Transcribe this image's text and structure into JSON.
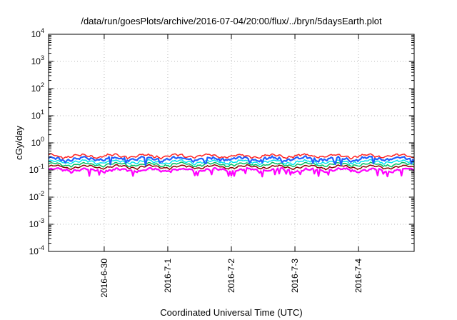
{
  "chart_data": {
    "type": "line",
    "title": "/data/run/goesPlots/archive/2016-07-04/20:00/flux/../bryn/5daysEarth.plot",
    "xlabel": "Coordinated Universal Time (UTC)",
    "ylabel": "cGy/day",
    "yscale": "log",
    "ylim": [
      0.0001,
      10000
    ],
    "y_ticks": [
      {
        "value": 0.0001,
        "base": "10",
        "exp": "-4"
      },
      {
        "value": 0.001,
        "base": "10",
        "exp": "-3"
      },
      {
        "value": 0.01,
        "base": "10",
        "exp": "-2"
      },
      {
        "value": 0.1,
        "base": "10",
        "exp": "-1"
      },
      {
        "value": 1,
        "base": "10",
        "exp": "0"
      },
      {
        "value": 10,
        "base": "10",
        "exp": "1"
      },
      {
        "value": 100,
        "base": "10",
        "exp": "2"
      },
      {
        "value": 1000,
        "base": "10",
        "exp": "3"
      },
      {
        "value": 10000,
        "base": "10",
        "exp": "4"
      }
    ],
    "xlim": [
      "2016-06-29T03:00",
      "2016-07-04T21:00"
    ],
    "x_ticks": [
      {
        "date": "2016-06-30T00:00",
        "label": "2016-6-30"
      },
      {
        "date": "2016-07-01T00:00",
        "label": "2016-7-1"
      },
      {
        "date": "2016-07-02T00:00",
        "label": "2016-7-2"
      },
      {
        "date": "2016-07-03T00:00",
        "label": "2016-7-3"
      },
      {
        "date": "2016-07-04T00:00",
        "label": "2016-7-4"
      }
    ],
    "grid": true,
    "series": [
      {
        "color": "#ff00ff",
        "base": 0.1,
        "dips": true,
        "noise": 0.08
      },
      {
        "color": "#8b0000",
        "base": 0.13,
        "dips": false,
        "noise": 0.04
      },
      {
        "color": "#00c060",
        "base": 0.16,
        "dips": false,
        "noise": 0.05
      },
      {
        "color": "#00e5ee",
        "base": 0.2,
        "dips": false,
        "noise": 0.06
      },
      {
        "color": "#1e60ff",
        "base": 0.26,
        "dips": true,
        "noise": 0.09
      },
      {
        "color": "#ff2020",
        "base": 0.33,
        "dips": false,
        "noise": 0.06
      }
    ]
  }
}
